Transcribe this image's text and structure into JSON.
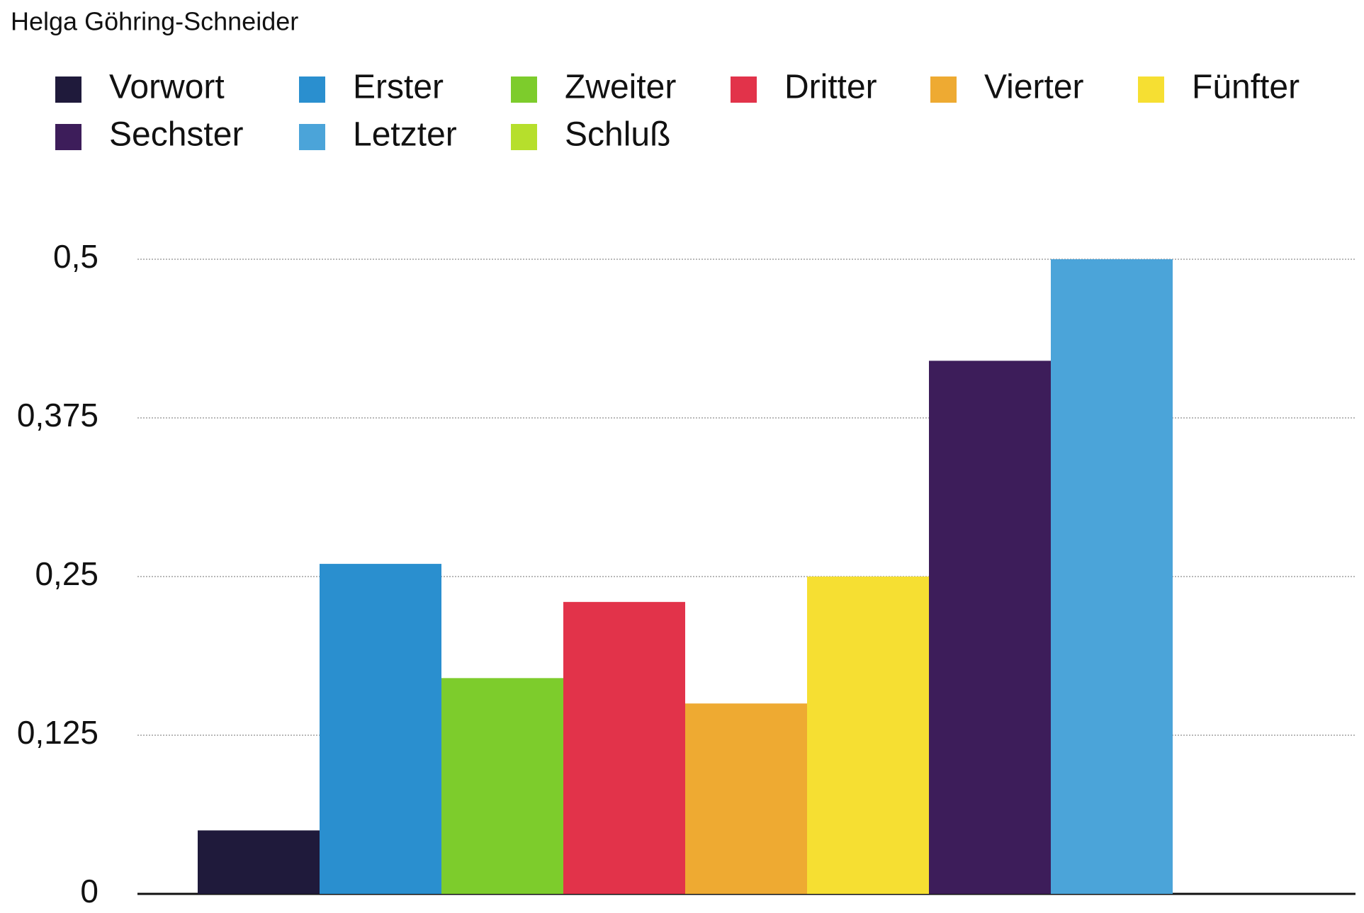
{
  "chart_data": {
    "type": "bar",
    "title": "Helga Göhring-Schneider",
    "series": [
      {
        "name": "Vorwort",
        "color": "#1f1a3b",
        "values": [
          0.05
        ]
      },
      {
        "name": "Erster",
        "color": "#2a8fcf",
        "values": [
          0.26
        ]
      },
      {
        "name": "Zweiter",
        "color": "#7dcc2c",
        "values": [
          0.17
        ]
      },
      {
        "name": "Dritter",
        "color": "#e2334a",
        "values": [
          0.23
        ]
      },
      {
        "name": "Vierter",
        "color": "#eeaa32",
        "values": [
          0.15
        ]
      },
      {
        "name": "Fünfter",
        "color": "#f6df32",
        "values": [
          0.25
        ]
      },
      {
        "name": "Sechster",
        "color": "#3d1d5a",
        "values": [
          0.42
        ]
      },
      {
        "name": "Letzter",
        "color": "#4ba4d9",
        "values": [
          0.5
        ]
      },
      {
        "name": "Schluß",
        "color": "#b6df2c",
        "values": [
          null
        ]
      }
    ],
    "ylim": [
      0,
      0.5
    ],
    "yticks": [
      0,
      {
        "value": 0.125,
        "label": "0,125"
      },
      {
        "value": 0.25,
        "label": "0,25"
      },
      {
        "value": 0.375,
        "label": "0,375"
      },
      {
        "value": 0.5,
        "label": "0,5"
      }
    ],
    "grid": true
  }
}
